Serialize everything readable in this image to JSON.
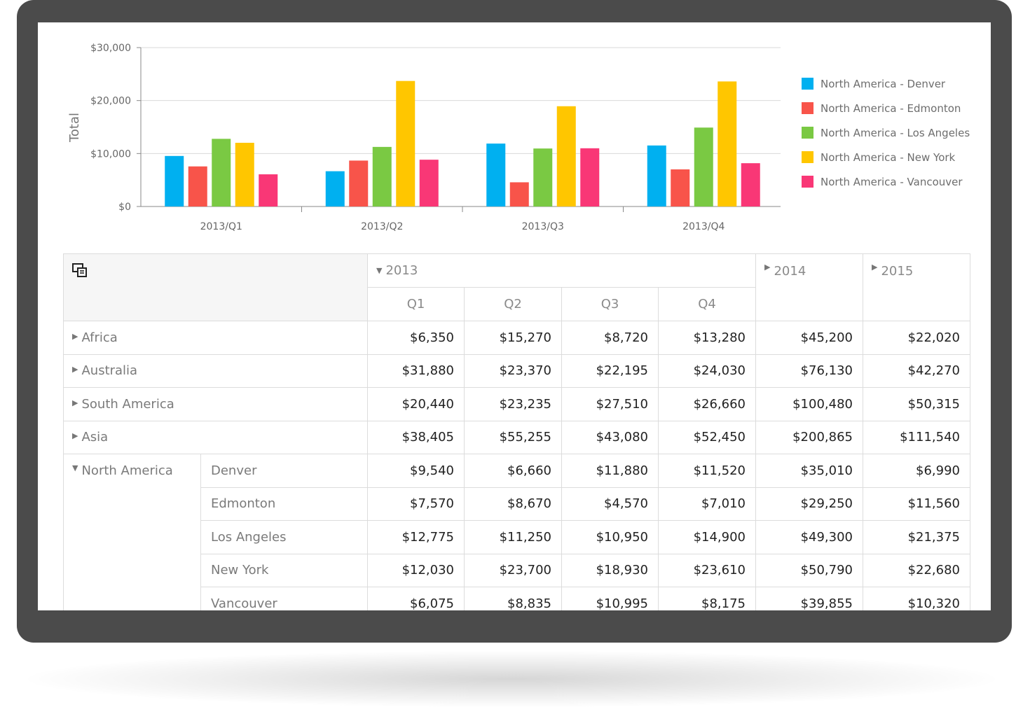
{
  "chart_data": {
    "type": "bar",
    "categories": [
      "2013/Q1",
      "2013/Q2",
      "2013/Q3",
      "2013/Q4"
    ],
    "ylabel": "Total",
    "ylim": [
      0,
      30000
    ],
    "y_ticks": [
      "$0",
      "$10,000",
      "$20,000",
      "$30,000"
    ],
    "y_tick_values": [
      0,
      10000,
      20000,
      30000
    ],
    "grid": true,
    "legend_position": "right",
    "series": [
      {
        "name": "North America - Denver",
        "color": "#00b0f0",
        "values": [
          9540,
          6660,
          11880,
          11520
        ]
      },
      {
        "name": "North America - Edmonton",
        "color": "#f8544a",
        "values": [
          7570,
          8670,
          4570,
          7010
        ]
      },
      {
        "name": "North America - Los Angeles",
        "color": "#7ac943",
        "values": [
          12775,
          11250,
          10950,
          14900
        ]
      },
      {
        "name": "North America - New York",
        "color": "#ffc600",
        "values": [
          12030,
          23700,
          18930,
          23610
        ]
      },
      {
        "name": "North America - Vancouver",
        "color": "#f93776",
        "values": [
          6075,
          8835,
          10995,
          8175
        ]
      }
    ]
  },
  "pivot": {
    "year_2013": "2013",
    "year_2014": "2014",
    "year_2015": "2015",
    "quarters": [
      "Q1",
      "Q2",
      "Q3",
      "Q4"
    ],
    "rows": [
      {
        "label": "Africa",
        "values": [
          "$6,350",
          "$15,270",
          "$8,720",
          "$13,280",
          "$45,200",
          "$22,020"
        ]
      },
      {
        "label": "Australia",
        "values": [
          "$31,880",
          "$23,370",
          "$22,195",
          "$24,030",
          "$76,130",
          "$42,270"
        ]
      },
      {
        "label": "South America",
        "values": [
          "$20,440",
          "$23,235",
          "$27,510",
          "$26,660",
          "$100,480",
          "$50,315"
        ]
      },
      {
        "label": "Asia",
        "values": [
          "$38,405",
          "$55,255",
          "$43,080",
          "$52,450",
          "$200,865",
          "$111,540"
        ]
      }
    ],
    "group": {
      "label": "North America",
      "children": [
        {
          "label": "Denver",
          "values": [
            "$9,540",
            "$6,660",
            "$11,880",
            "$11,520",
            "$35,010",
            "$6,990"
          ]
        },
        {
          "label": "Edmonton",
          "values": [
            "$7,570",
            "$8,670",
            "$4,570",
            "$7,010",
            "$29,250",
            "$11,560"
          ]
        },
        {
          "label": "Los Angeles",
          "values": [
            "$12,775",
            "$11,250",
            "$10,950",
            "$14,900",
            "$49,300",
            "$21,375"
          ]
        },
        {
          "label": "New York",
          "values": [
            "$12,030",
            "$23,700",
            "$18,930",
            "$23,610",
            "$50,790",
            "$22,680"
          ]
        },
        {
          "label": "Vancouver",
          "values": [
            "$6,075",
            "$8,835",
            "$10,995",
            "$8,175",
            "$39,855",
            "$10,320"
          ]
        }
      ]
    }
  }
}
